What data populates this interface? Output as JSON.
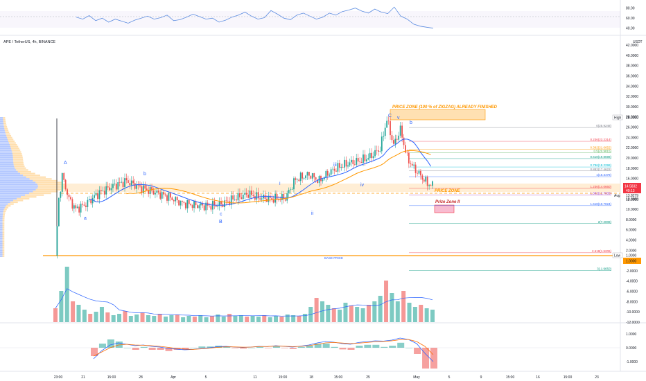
{
  "header": {
    "title": "APE / TetherUS, 4h, BINANCE"
  },
  "price_axis": {
    "currency": "USDT",
    "ticks": [
      "42.0000",
      "40.0000",
      "38.0000",
      "36.0000",
      "34.0000",
      "32.0000",
      "30.0000",
      "28.0000",
      "26.0000",
      "24.0000",
      "22.0000",
      "20.0000",
      "18.0000",
      "16.0000",
      "14.0000",
      "12.0000",
      "10.0000",
      "8.0000",
      "6.0000",
      "4.0000",
      "2.0000",
      "0.0000",
      "-2.0000",
      "-4.0000",
      "-6.0000",
      "-8.0000",
      "-10.0000",
      "-12.0000"
    ],
    "current_price_label": "14.5832",
    "current_price_sub": "49:13",
    "avg_label": "Avg",
    "avg_value": "13.8279",
    "high_label": "High",
    "high_value": "28.0000",
    "low_label": "Low",
    "low_value": "1.0000",
    "zone_value": "1.0000",
    "twelve_label": "12.0000",
    "accent_colors": {
      "current": "#f23645",
      "low": "#ff9800",
      "zone": "#2962ff"
    }
  },
  "rsi_axis": {
    "ticks": [
      "80.00",
      "60.00",
      "40.00"
    ]
  },
  "macd_axis": {
    "ticks": [
      "1.0000",
      "0.0000",
      "-1.0000"
    ]
  },
  "time_axis": {
    "labels": [
      "23:00",
      "21",
      "15:00",
      "28",
      "Apr",
      "5",
      "11",
      "15:00",
      "18",
      "15:00",
      "25",
      "May",
      "5",
      "9",
      "15:00",
      "16",
      "15:00",
      "23"
    ]
  },
  "annotations": {
    "zone_main": "PRICE ZONE (100 % of ZIGZAG) ALREADY FINISHED",
    "price_zone": "PRICE ZONE",
    "prize_zone_2": "Prize Zone II",
    "base_price": "BASE PRICE"
  },
  "wave_labels": [
    "A",
    "a",
    "b",
    "c",
    "B",
    "i",
    "ii",
    "iii",
    "iv",
    "C",
    "v",
    "b"
  ],
  "fib_labels": [
    "0(25.9248)",
    "0.236(23.2314)",
    "0.382(21.6652)",
    "0.5(20.9815)",
    "0.618(19.8698)",
    "0.786(18.2298)",
    "0.882(17.4622)",
    "1(16.3478)",
    "1.236(14.0660)",
    "1.382(12.7835)",
    "1.618(10.7024)",
    "2(7.2008)",
    "2.618(1.5206)",
    "3(-1.9650)"
  ],
  "chart_data": {
    "type": "line",
    "title": "APE / TetherUS, 4h, BINANCE",
    "xlabel": "",
    "ylabel": "USDT",
    "ylim": [
      -12,
      42
    ],
    "x": [
      "23:00",
      "21",
      "15:00",
      "28",
      "Apr",
      "5",
      "11",
      "15:00",
      "18",
      "15:00",
      "25",
      "May"
    ],
    "series": [
      {
        "name": "",
        "values": [
          1.0,
          12.5,
          10.5,
          14.5,
          13.0,
          11.5,
          10.8,
          11.5,
          12.0,
          16.0,
          20.0,
          14.5832
        ]
      }
    ],
    "price_path": [
      [
        0,
        1.0
      ],
      [
        2,
        12.0
      ],
      [
        4,
        16.5
      ],
      [
        8,
        12.0
      ],
      [
        12,
        10.0
      ],
      [
        18,
        11.0
      ],
      [
        25,
        13.0
      ],
      [
        34,
        14.5
      ],
      [
        42,
        15.5
      ],
      [
        50,
        14.2
      ],
      [
        58,
        13.4
      ],
      [
        66,
        12.5
      ],
      [
        75,
        11.2
      ],
      [
        82,
        10.8
      ],
      [
        90,
        10.6
      ],
      [
        98,
        11.0
      ],
      [
        106,
        12.1
      ],
      [
        114,
        13.0
      ],
      [
        120,
        12.3
      ],
      [
        128,
        12.0
      ],
      [
        136,
        12.2
      ],
      [
        142,
        15.8
      ],
      [
        150,
        16.8
      ],
      [
        156,
        15.5
      ],
      [
        162,
        17.2
      ],
      [
        168,
        18.3
      ],
      [
        174,
        19.0
      ],
      [
        180,
        19.4
      ],
      [
        186,
        20.2
      ],
      [
        192,
        21.8
      ],
      [
        196,
        27.5
      ],
      [
        200,
        22.5
      ],
      [
        204,
        25.5
      ],
      [
        208,
        20.0
      ],
      [
        212,
        18.0
      ],
      [
        216,
        16.5
      ],
      [
        220,
        15.0
      ],
      [
        223,
        14.5832
      ]
    ],
    "fib_levels": [
      25.9248,
      23.2314,
      21.6652,
      20.9815,
      19.8698,
      18.2298,
      17.4622,
      16.3478,
      14.066,
      12.7835,
      10.7024,
      7.2008,
      1.5206,
      -1.965
    ],
    "rsi": {
      "ylim": [
        30,
        85
      ],
      "values": [
        62,
        58,
        65,
        55,
        60,
        52,
        58,
        54,
        50,
        56,
        60,
        64,
        58,
        61,
        66,
        55,
        57,
        62,
        68,
        63,
        58,
        60,
        52,
        56,
        62,
        66,
        72,
        64,
        58,
        61,
        75,
        68,
        60,
        57,
        66,
        70,
        64,
        58,
        62,
        70,
        66,
        73,
        76,
        80,
        74,
        70,
        78,
        72,
        69,
        82,
        64,
        58,
        48,
        44,
        42,
        40
      ]
    },
    "volume": {
      "values": [
        20,
        45,
        80,
        30,
        25,
        18,
        12,
        15,
        22,
        14,
        10,
        12,
        16,
        9,
        11,
        14,
        10,
        9,
        12,
        8,
        10,
        11,
        7,
        9,
        8,
        10,
        7,
        9,
        11,
        8,
        12,
        9,
        10,
        8,
        9,
        8,
        10,
        7,
        9,
        8,
        11,
        10,
        9,
        12,
        22,
        35,
        30,
        25,
        20,
        18,
        28,
        24,
        22,
        20,
        25,
        30,
        38,
        60,
        42,
        30,
        45,
        28,
        22,
        25,
        20,
        18
      ]
    },
    "macd": {
      "ylim": [
        -1.2,
        1.2
      ],
      "macd_line": [
        -0.8,
        -0.2,
        0.2,
        0.35,
        0.25,
        0.15,
        0.2,
        0.1,
        0.05,
        -0.05,
        -0.1,
        -0.15,
        -0.12,
        -0.05,
        0.0,
        0.08,
        0.1,
        0.05,
        0.02,
        0.05,
        0.1,
        0.08,
        0.15,
        0.1,
        0.05,
        0.12,
        0.2,
        0.35,
        0.45,
        0.4,
        0.3,
        0.25,
        0.38,
        0.45,
        0.5,
        0.48,
        0.55,
        0.7,
        0.6,
        0.3,
        -0.4,
        -1.0
      ],
      "signal_line": [
        -0.6,
        -0.3,
        0.0,
        0.2,
        0.25,
        0.2,
        0.18,
        0.15,
        0.1,
        0.03,
        -0.05,
        -0.1,
        -0.12,
        -0.08,
        -0.03,
        0.03,
        0.07,
        0.06,
        0.04,
        0.05,
        0.08,
        0.09,
        0.12,
        0.11,
        0.08,
        0.1,
        0.15,
        0.25,
        0.35,
        0.38,
        0.34,
        0.3,
        0.33,
        0.38,
        0.43,
        0.46,
        0.5,
        0.58,
        0.6,
        0.45,
        0.1,
        -0.5
      ]
    }
  }
}
